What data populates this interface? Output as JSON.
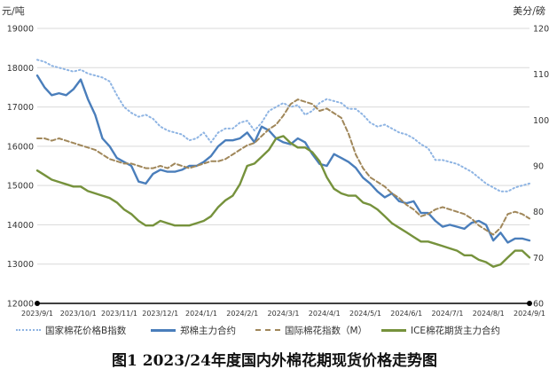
{
  "chart_data": {
    "type": "line",
    "title": "图1 2023/24年度国内外棉花期现货价格走势图",
    "left_axis": {
      "unit": "元/吨",
      "ylim": [
        12000,
        19000
      ],
      "ticks": [
        "12000",
        "13000",
        "14000",
        "15000",
        "16000",
        "17000",
        "18000",
        "19000"
      ]
    },
    "right_axis": {
      "unit": "美分/磅",
      "ylim": [
        60,
        120
      ],
      "ticks": [
        "60",
        "70",
        "80",
        "90",
        "100",
        "110",
        "120"
      ]
    },
    "x_ticks": [
      "2023/9/1",
      "2023/10/1",
      "2023/11/1",
      "2023/12/1",
      "2024/1/1",
      "2024/2/1",
      "2024/3/1",
      "2024/4/1",
      "2024/5/1",
      "2024/6/1",
      "2024/7/1",
      "2024/8/1",
      "2024/9/1"
    ],
    "grid": true,
    "legend_position": "bottom",
    "series": [
      {
        "name": "国家棉花价格B指数",
        "axis": "left",
        "color": "#8eb4e3",
        "style": "dotted",
        "values": [
          18200,
          18150,
          18050,
          18000,
          17950,
          17900,
          17950,
          17850,
          17800,
          17750,
          17650,
          17300,
          17000,
          16850,
          16750,
          16800,
          16700,
          16500,
          16400,
          16350,
          16300,
          16150,
          16200,
          16350,
          16100,
          16350,
          16450,
          16450,
          16600,
          16650,
          16400,
          16600,
          16900,
          17000,
          17100,
          17000,
          17050,
          16800,
          16900,
          17100,
          17200,
          17150,
          17100,
          16950,
          16950,
          16800,
          16600,
          16500,
          16550,
          16450,
          16350,
          16300,
          16200,
          16050,
          15950,
          15650,
          15650,
          15600,
          15550,
          15450,
          15350,
          15200,
          15050,
          14950,
          14850,
          14850,
          14950,
          15000,
          15050
        ]
      },
      {
        "name": "郑棉主力合约",
        "axis": "left",
        "color": "#4a7ebb",
        "style": "solid",
        "values": [
          17800,
          17500,
          17300,
          17350,
          17300,
          17450,
          17700,
          17200,
          16800,
          16200,
          16000,
          15700,
          15600,
          15500,
          15100,
          15050,
          15300,
          15400,
          15350,
          15350,
          15400,
          15500,
          15500,
          15600,
          15750,
          16000,
          16150,
          16150,
          16200,
          16350,
          16100,
          16500,
          16400,
          16200,
          16100,
          16050,
          16200,
          16100,
          15800,
          15550,
          15500,
          15800,
          15700,
          15600,
          15450,
          15200,
          15050,
          14850,
          14700,
          14800,
          14600,
          14550,
          14600,
          14300,
          14300,
          14100,
          13950,
          14000,
          13950,
          13900,
          14050,
          14100,
          14000,
          13600,
          13800,
          13550,
          13650,
          13650,
          13600
        ]
      },
      {
        "name": "国际棉花指数（M）",
        "axis": "right",
        "color": "#a0875a",
        "style": "dashed",
        "values": [
          96,
          96,
          95.5,
          96,
          95.5,
          95,
          94.5,
          94,
          93.5,
          92.5,
          91.5,
          91,
          90.5,
          90.5,
          90,
          89.5,
          89.5,
          90,
          89.5,
          90.5,
          90,
          89.5,
          90,
          90.5,
          91,
          91,
          91.5,
          92.5,
          93.5,
          94.5,
          95,
          96.5,
          98,
          99,
          101,
          103.5,
          104.5,
          104,
          103.5,
          102,
          102.5,
          101.5,
          100.5,
          97,
          92.5,
          89.5,
          87.5,
          86.5,
          85.5,
          84,
          83,
          81.5,
          80.5,
          79,
          79.5,
          80.5,
          81,
          80.5,
          80,
          79.5,
          78.5,
          77,
          76,
          75,
          76.5,
          79.5,
          80,
          79.5,
          78.5
        ]
      },
      {
        "name": "ICE棉花期货主力合约",
        "axis": "right",
        "color": "#76923c",
        "style": "solid",
        "values": [
          89,
          88,
          87,
          86.5,
          86,
          85.5,
          85.5,
          84.5,
          84,
          83.5,
          83,
          82,
          80.5,
          79.5,
          78,
          77,
          77,
          78,
          77.5,
          77,
          77,
          77,
          77.5,
          78,
          79,
          81,
          82.5,
          83.5,
          86,
          90,
          90.5,
          92,
          93.5,
          96,
          96.5,
          95,
          94,
          94,
          93,
          91,
          87.5,
          85,
          84,
          83.5,
          83.5,
          82,
          81.5,
          80.5,
          79,
          77.5,
          76.5,
          75.5,
          74.5,
          73.5,
          73.5,
          73,
          72.5,
          72,
          71.5,
          70.5,
          70.5,
          69.5,
          69,
          68,
          68.5,
          70,
          71.5,
          71.5,
          70
        ]
      }
    ]
  }
}
